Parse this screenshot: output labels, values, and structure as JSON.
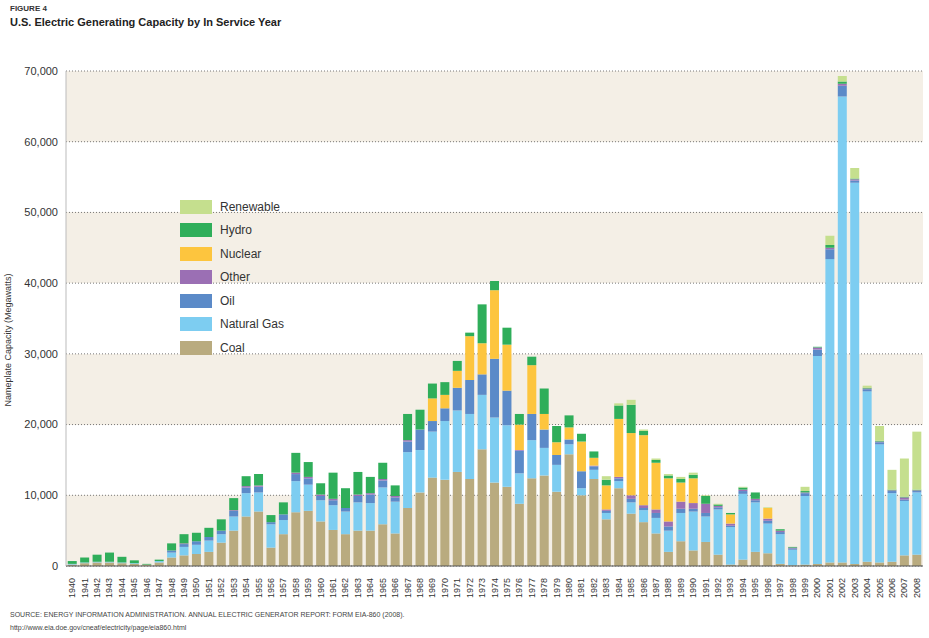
{
  "chart_data": {
    "type": "bar",
    "title": "U.S. Electric Generating Capacity by In Service Year",
    "annotations": [
      "FIGURE 4",
      "SOURCE: ENERGY INFORMATION ADMINISTRATION. ANNUAL ELECTRIC GENERATOR REPORT: FORM EIA-860 (2008).",
      "http://www.eia.doe.gov/cneaf/electricity/page/eia860.html"
    ],
    "y_label": "Nameplate Capacity (Megawatts)",
    "stacked": true,
    "grid": true,
    "legend": "top-left",
    "ylim": [
      0,
      70000
    ],
    "yticks": [
      0,
      {
        "value": 10000,
        "label": "10,000"
      },
      {
        "value": 20000,
        "label": "20,000"
      },
      {
        "value": 30000,
        "label": "30,000"
      },
      {
        "value": 40000,
        "label": "40,000"
      },
      {
        "value": 50000,
        "label": "50,000"
      },
      {
        "value": 60000,
        "label": "60,000"
      },
      {
        "value": 70000,
        "label": "70,000"
      }
    ],
    "categories": [
      "1940",
      "1941",
      "1942",
      "1943",
      "1944",
      "1945",
      "1946",
      "1947",
      "1948",
      "1949",
      "1950",
      "1951",
      "1952",
      "1953",
      "1954",
      "1955",
      "1956",
      "1957",
      "1958",
      "1959",
      "1960",
      "1961",
      "1962",
      "1963",
      "1964",
      "1965",
      "1966",
      "1967",
      "1968",
      "1969",
      "1970",
      "1971",
      "1972",
      "1973",
      "1974",
      "1975",
      "1976",
      "1977",
      "1978",
      "1979",
      "1980",
      "1981",
      "1982",
      "1983",
      "1984",
      "1985",
      "1986",
      "1987",
      "1988",
      "1989",
      "1990",
      "1991",
      "1992",
      "1993",
      "1994",
      "1995",
      "1996",
      "1997",
      "1998",
      "1999",
      "2000",
      "2001",
      "2002",
      "2003",
      "2004",
      "2005",
      "2006",
      "2007",
      "2008"
    ],
    "series": [
      {
        "name": "Coal",
        "color": "#b9ab7f",
        "values": [
          200,
          400,
          500,
          500,
          400,
          300,
          200,
          500,
          1200,
          1500,
          1700,
          2000,
          3300,
          5000,
          7000,
          7700,
          2600,
          4500,
          7600,
          7800,
          6300,
          5100,
          4500,
          5000,
          5000,
          5900,
          4600,
          8200,
          10400,
          12500,
          12200,
          13300,
          12300,
          16500,
          11800,
          11200,
          8800,
          12400,
          12800,
          10500,
          15800,
          10000,
          12300,
          6600,
          11000,
          7400,
          6200,
          4600,
          2000,
          3500,
          2200,
          3400,
          1600,
          200,
          900,
          2000,
          1800,
          300,
          100,
          200,
          300,
          500,
          500,
          300,
          600,
          500,
          600,
          1500,
          1600
        ]
      },
      {
        "name": "Natural Gas",
        "color": "#7dcdf1",
        "values": [
          100,
          100,
          100,
          100,
          100,
          100,
          0,
          200,
          700,
          1200,
          1300,
          1600,
          1200,
          2000,
          3300,
          2700,
          3300,
          2000,
          4400,
          3700,
          3000,
          3500,
          3200,
          4000,
          3900,
          5200,
          4500,
          7900,
          6000,
          6500,
          8300,
          8700,
          9200,
          7700,
          9200,
          8700,
          4300,
          5400,
          3900,
          3800,
          1400,
          1000,
          1300,
          900,
          1000,
          1600,
          1700,
          2200,
          3000,
          4000,
          5500,
          3600,
          6400,
          5300,
          9300,
          7000,
          4200,
          4200,
          2200,
          9700,
          29400,
          42900,
          65900,
          53900,
          24100,
          16700,
          9700,
          7700,
          8800
        ]
      },
      {
        "name": "Oil",
        "color": "#5b8ac8",
        "values": [
          0,
          0,
          0,
          0,
          0,
          0,
          0,
          0,
          300,
          400,
          500,
          500,
          500,
          800,
          800,
          800,
          300,
          800,
          1000,
          900,
          600,
          700,
          500,
          900,
          1200,
          1000,
          600,
          1500,
          2900,
          1500,
          1800,
          3200,
          4800,
          2900,
          8300,
          4900,
          3200,
          3700,
          2600,
          1400,
          700,
          2400,
          500,
          300,
          400,
          500,
          300,
          700,
          600,
          600,
          400,
          500,
          300,
          200,
          400,
          300,
          400,
          300,
          200,
          400,
          900,
          1400,
          1500,
          300,
          300,
          300,
          300,
          200,
          200
        ]
      },
      {
        "name": "Other",
        "color": "#9b6fb4",
        "values": [
          0,
          0,
          0,
          0,
          0,
          0,
          0,
          0,
          0,
          100,
          0,
          0,
          0,
          100,
          200,
          200,
          0,
          0,
          200,
          200,
          200,
          200,
          0,
          200,
          200,
          200,
          200,
          200,
          0,
          0,
          0,
          0,
          0,
          0,
          0,
          0,
          100,
          0,
          0,
          0,
          0,
          0,
          100,
          200,
          200,
          500,
          400,
          500,
          700,
          1000,
          800,
          1300,
          200,
          300,
          200,
          200,
          300,
          200,
          100,
          100,
          300,
          200,
          300,
          200,
          100,
          100,
          100,
          300,
          100
        ]
      },
      {
        "name": "Nuclear",
        "color": "#fdc53e",
        "values": [
          0,
          0,
          0,
          0,
          0,
          0,
          0,
          0,
          0,
          0,
          0,
          0,
          0,
          0,
          0,
          0,
          0,
          0,
          0,
          0,
          0,
          0,
          0,
          0,
          0,
          0,
          0,
          0,
          0,
          3200,
          1900,
          2400,
          6200,
          4400,
          9700,
          6500,
          3600,
          6900,
          2200,
          1800,
          1700,
          4200,
          1100,
          3400,
          8200,
          8800,
          9900,
          6600,
          6100,
          2700,
          3500,
          0,
          0,
          1300,
          0,
          0,
          1500,
          0,
          0,
          0,
          0,
          0,
          0,
          0,
          0,
          0,
          0,
          0,
          0
        ]
      },
      {
        "name": "Hydro",
        "color": "#2fae5a",
        "values": [
          400,
          700,
          1000,
          1300,
          800,
          400,
          100,
          200,
          1000,
          1300,
          1200,
          1300,
          1600,
          1700,
          1400,
          1600,
          1000,
          1700,
          2800,
          2100,
          1600,
          3700,
          2800,
          3200,
          2300,
          2300,
          1500,
          3700,
          2800,
          2100,
          1800,
          1400,
          500,
          5500,
          1300,
          2400,
          1500,
          1200,
          3600,
          2300,
          1700,
          1100,
          900,
          800,
          1900,
          4000,
          600,
          400,
          400,
          500,
          500,
          1100,
          200,
          200,
          300,
          900,
          0,
          200,
          100,
          200,
          100,
          400,
          300,
          100,
          100,
          100,
          100,
          100,
          100
        ]
      },
      {
        "name": "Renewable",
        "color": "#c5df8e",
        "values": [
          0,
          0,
          0,
          0,
          0,
          0,
          0,
          0,
          0,
          0,
          0,
          0,
          0,
          0,
          0,
          0,
          0,
          0,
          0,
          0,
          0,
          0,
          0,
          0,
          0,
          0,
          0,
          0,
          0,
          0,
          0,
          0,
          0,
          0,
          0,
          0,
          0,
          0,
          0,
          0,
          0,
          0,
          0,
          500,
          300,
          700,
          200,
          200,
          200,
          300,
          300,
          100,
          100,
          0,
          100,
          0,
          100,
          0,
          0,
          600,
          0,
          1300,
          800,
          1500,
          300,
          2100,
          2800,
          5400,
          8200
        ]
      }
    ]
  }
}
